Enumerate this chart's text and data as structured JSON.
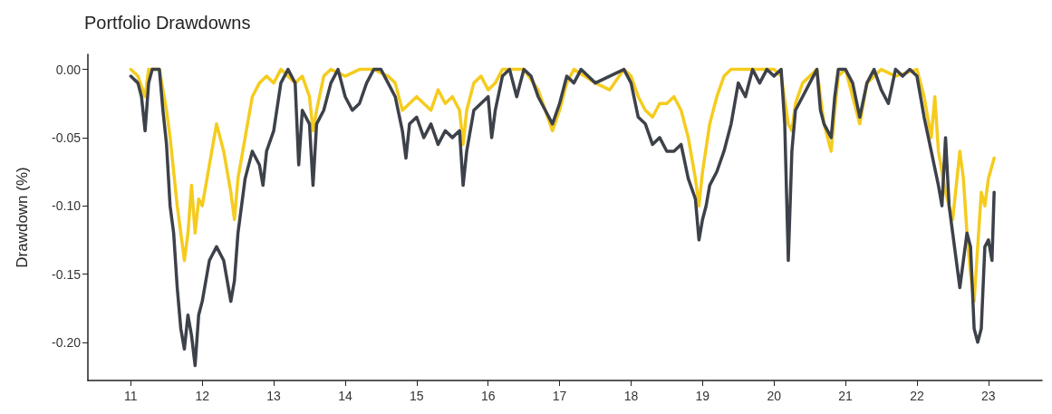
{
  "chart_data": {
    "type": "line",
    "title": "Portfolio Drawdowns",
    "ylabel": "Drawdown (%)",
    "xlim": [
      10.4,
      23.75
    ],
    "xticks": [
      11,
      12,
      13,
      14,
      15,
      16,
      17,
      18,
      19,
      20,
      21,
      22,
      23
    ],
    "ylim": [
      -0.228,
      0.011
    ],
    "yticks": [
      {
        "value": -0.2,
        "label": "-0.20"
      },
      {
        "value": -0.15,
        "label": "-0.15"
      },
      {
        "value": -0.1,
        "label": "-0.10"
      },
      {
        "value": -0.05,
        "label": "-0.05"
      },
      {
        "value": 0,
        "label": "0.00"
      }
    ],
    "series": [
      {
        "color": "#f5cc1e",
        "x": [
          11.0,
          11.1,
          11.2,
          11.25,
          11.4,
          11.5,
          11.55,
          11.6,
          11.65,
          11.7,
          11.75,
          11.8,
          11.85,
          11.9,
          11.95,
          12.0,
          12.1,
          12.2,
          12.25,
          12.3,
          12.4,
          12.45,
          12.5,
          12.6,
          12.7,
          12.8,
          12.9,
          13.0,
          13.1,
          13.3,
          13.4,
          13.5,
          13.55,
          13.6,
          13.7,
          13.8,
          14.0,
          14.2,
          14.4,
          14.6,
          14.7,
          14.8,
          14.9,
          15.0,
          15.2,
          15.3,
          15.4,
          15.5,
          15.6,
          15.65,
          15.7,
          15.8,
          15.9,
          16.0,
          16.1,
          16.2,
          16.5,
          16.7,
          16.8,
          16.9,
          17.0,
          17.1,
          17.2,
          17.5,
          17.7,
          17.9,
          18.0,
          18.1,
          18.2,
          18.3,
          18.4,
          18.5,
          18.6,
          18.7,
          18.8,
          18.9,
          18.95,
          19.0,
          19.1,
          19.2,
          19.3,
          19.4,
          20.0,
          20.1,
          20.2,
          20.25,
          20.3,
          20.4,
          20.6,
          20.7,
          20.8,
          20.85,
          20.9,
          21.0,
          21.2,
          21.3,
          21.5,
          21.7,
          22.0,
          22.1,
          22.2,
          22.25,
          22.3,
          22.4,
          22.45,
          22.5,
          22.6,
          22.65,
          22.7,
          22.75,
          22.8,
          22.85,
          22.9,
          22.95,
          23.0,
          23.08
        ],
        "values": [
          0,
          -0.005,
          -0.02,
          0,
          0,
          -0.03,
          -0.05,
          -0.075,
          -0.1,
          -0.12,
          -0.14,
          -0.12,
          -0.085,
          -0.12,
          -0.095,
          -0.1,
          -0.07,
          -0.04,
          -0.05,
          -0.06,
          -0.09,
          -0.11,
          -0.08,
          -0.05,
          -0.02,
          -0.01,
          -0.005,
          -0.01,
          0,
          -0.01,
          -0.005,
          -0.02,
          -0.045,
          -0.03,
          -0.005,
          0,
          -0.005,
          0,
          0,
          -0.005,
          -0.01,
          -0.03,
          -0.025,
          -0.02,
          -0.03,
          -0.015,
          -0.025,
          -0.02,
          -0.03,
          -0.055,
          -0.03,
          -0.01,
          -0.005,
          -0.015,
          -0.01,
          0,
          0,
          -0.015,
          -0.03,
          -0.045,
          -0.03,
          -0.01,
          0,
          -0.01,
          -0.015,
          0,
          -0.005,
          -0.02,
          -0.03,
          -0.035,
          -0.025,
          -0.025,
          -0.02,
          -0.03,
          -0.05,
          -0.08,
          -0.1,
          -0.075,
          -0.04,
          -0.02,
          -0.005,
          0,
          0,
          -0.005,
          -0.04,
          -0.045,
          -0.025,
          -0.01,
          0,
          -0.04,
          -0.06,
          -0.03,
          -0.005,
          0,
          -0.04,
          -0.01,
          0,
          -0.005,
          0,
          -0.02,
          -0.05,
          -0.02,
          -0.06,
          -0.09,
          -0.1,
          -0.11,
          -0.06,
          -0.08,
          -0.12,
          -0.15,
          -0.17,
          -0.13,
          -0.09,
          -0.1,
          -0.08,
          -0.065
        ]
      },
      {
        "color": "#3d4149",
        "x": [
          11.0,
          11.1,
          11.15,
          11.2,
          11.25,
          11.3,
          11.4,
          11.45,
          11.5,
          11.55,
          11.6,
          11.65,
          11.7,
          11.75,
          11.8,
          11.85,
          11.9,
          11.95,
          12.0,
          12.1,
          12.2,
          12.3,
          12.4,
          12.45,
          12.5,
          12.6,
          12.7,
          12.8,
          12.85,
          12.9,
          13.0,
          13.1,
          13.2,
          13.3,
          13.35,
          13.4,
          13.5,
          13.55,
          13.6,
          13.7,
          13.8,
          13.9,
          14.0,
          14.1,
          14.2,
          14.3,
          14.4,
          14.5,
          14.6,
          14.7,
          14.8,
          14.85,
          14.9,
          15.0,
          15.1,
          15.2,
          15.3,
          15.4,
          15.5,
          15.6,
          15.65,
          15.7,
          15.8,
          15.9,
          16.0,
          16.05,
          16.1,
          16.2,
          16.3,
          16.4,
          16.5,
          16.6,
          16.7,
          16.8,
          16.9,
          17.0,
          17.1,
          17.2,
          17.3,
          17.5,
          17.7,
          17.9,
          18.0,
          18.1,
          18.2,
          18.3,
          18.4,
          18.5,
          18.6,
          18.7,
          18.8,
          18.9,
          18.95,
          19.0,
          19.05,
          19.1,
          19.2,
          19.3,
          19.4,
          19.5,
          19.6,
          19.7,
          19.8,
          19.9,
          20.0,
          20.1,
          20.15,
          20.2,
          20.25,
          20.3,
          20.4,
          20.5,
          20.6,
          20.65,
          20.7,
          20.8,
          20.85,
          20.9,
          21.0,
          21.1,
          21.2,
          21.3,
          21.4,
          21.5,
          21.6,
          21.7,
          21.8,
          21.9,
          22.0,
          22.05,
          22.1,
          22.2,
          22.3,
          22.35,
          22.4,
          22.45,
          22.5,
          22.6,
          22.65,
          22.7,
          22.75,
          22.8,
          22.85,
          22.9,
          22.95,
          23.0,
          23.05,
          23.08
        ],
        "values": [
          -0.005,
          -0.01,
          -0.02,
          -0.045,
          -0.01,
          0,
          0,
          -0.03,
          -0.055,
          -0.1,
          -0.12,
          -0.16,
          -0.19,
          -0.205,
          -0.18,
          -0.195,
          -0.217,
          -0.18,
          -0.17,
          -0.14,
          -0.13,
          -0.14,
          -0.17,
          -0.155,
          -0.12,
          -0.08,
          -0.06,
          -0.07,
          -0.085,
          -0.06,
          -0.045,
          -0.01,
          0,
          -0.01,
          -0.07,
          -0.03,
          -0.04,
          -0.085,
          -0.04,
          -0.03,
          -0.01,
          0,
          -0.02,
          -0.03,
          -0.025,
          -0.01,
          0,
          0,
          -0.01,
          -0.02,
          -0.045,
          -0.065,
          -0.04,
          -0.035,
          -0.05,
          -0.04,
          -0.055,
          -0.045,
          -0.05,
          -0.045,
          -0.085,
          -0.06,
          -0.03,
          -0.025,
          -0.02,
          -0.05,
          -0.03,
          -0.005,
          0,
          -0.02,
          0,
          -0.005,
          -0.02,
          -0.03,
          -0.04,
          -0.025,
          -0.005,
          -0.01,
          0,
          -0.01,
          -0.005,
          0,
          -0.01,
          -0.035,
          -0.04,
          -0.055,
          -0.05,
          -0.06,
          -0.06,
          -0.055,
          -0.08,
          -0.095,
          -0.125,
          -0.11,
          -0.1,
          -0.085,
          -0.075,
          -0.06,
          -0.04,
          -0.01,
          -0.02,
          0,
          -0.01,
          0,
          -0.005,
          0,
          -0.04,
          -0.14,
          -0.06,
          -0.03,
          -0.02,
          -0.01,
          0,
          -0.03,
          -0.04,
          -0.05,
          -0.02,
          0,
          0,
          -0.01,
          -0.035,
          -0.01,
          0,
          -0.015,
          -0.025,
          0,
          -0.005,
          0,
          -0.005,
          -0.02,
          -0.035,
          -0.06,
          -0.085,
          -0.1,
          -0.05,
          -0.1,
          -0.12,
          -0.16,
          -0.14,
          -0.12,
          -0.13,
          -0.19,
          -0.2,
          -0.19,
          -0.13,
          -0.125,
          -0.14,
          -0.09
        ]
      }
    ]
  }
}
